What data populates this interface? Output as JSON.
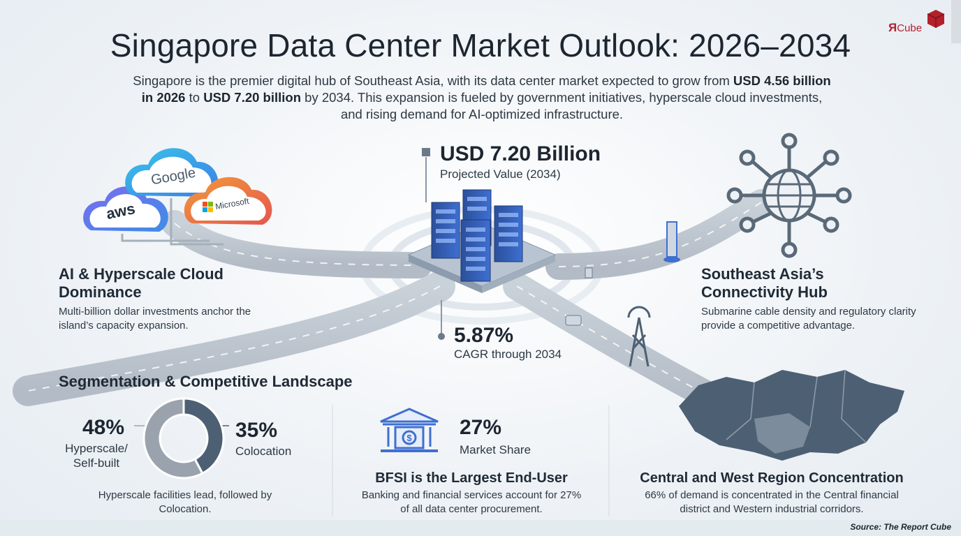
{
  "header": {
    "title": "Singapore Data Center Market Outlook: 2026–2034",
    "subtitle_parts": [
      "Singapore is the premier digital hub of Southeast Asia, with its data center market expected to grow from ",
      "USD 4.56 billion in 2026",
      " to ",
      "USD 7.20 billion",
      " by 2034. This expansion is fueled by government initiatives, hyperscale cloud investments, and rising demand for AI-optimized infrastructure."
    ]
  },
  "logo": {
    "mark": "Я",
    "text": "Cube",
    "brand_color": "#b3202b"
  },
  "clouds": {
    "aws": "aws",
    "google": "Google",
    "microsoft": "Microsoft"
  },
  "center_stats": {
    "value": "USD 7.20 Billion",
    "value_caption": "Projected Value (2034)",
    "cagr": "5.87%",
    "cagr_caption": "CAGR through 2034"
  },
  "features": {
    "ai_cloud": {
      "title": "AI & Hyperscale Cloud Dominance",
      "text": "Multi-billion dollar investments anchor the island’s capacity expansion."
    },
    "connectivity": {
      "title": "Southeast Asia’s Connectivity Hub",
      "text": "Submarine cable density and regulatory clarity provide a competitive advantage."
    }
  },
  "segmentation": {
    "title": "Segmentation & Competitive Landscape",
    "hyperscale_pct": "48%",
    "hyperscale_label": "Hyperscale/ Self-built",
    "colocation_pct": "35%",
    "colocation_label": "Colocation",
    "note": "Hyperscale facilities lead, followed by Colocation."
  },
  "bfsi": {
    "pct": "27%",
    "pct_label": "Market Share",
    "title": "BFSI is the Largest End-User",
    "text": "Banking and financial services account for 27% of all data center procurement."
  },
  "region": {
    "title": "Central and West Region Concentration",
    "text": "66% of demand is concentrated in the Central financial district and Western industrial corridors."
  },
  "source": "Source: The Report Cube",
  "chart_data": {
    "type": "pie",
    "categories": [
      "Hyperscale/Self-built",
      "Colocation"
    ],
    "values": [
      48,
      35
    ],
    "colors": {
      "hyperscale": "#9aa3ad",
      "colocation": "#4d6073"
    }
  },
  "colors": {
    "dark_slate": "#4d6073",
    "light_slate": "#9aa3ad",
    "accent_blue": "#3f6fd1"
  }
}
